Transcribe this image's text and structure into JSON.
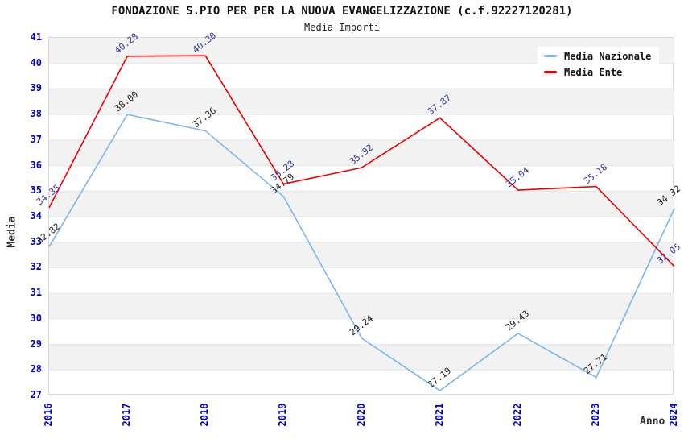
{
  "header": {
    "title": "FONDAZIONE S.PIO PER PER LA NUOVA EVANGELIZZAZIONE (c.f.92227120281)",
    "subtitle": "Media Importi"
  },
  "chart_data": {
    "type": "line",
    "x": [
      2016,
      2017,
      2018,
      2019,
      2020,
      2021,
      2022,
      2023,
      2024
    ],
    "xlabel": "Anno",
    "ylabel": "Media",
    "ylim": [
      27,
      41
    ],
    "ytick_step": 1,
    "grid": true,
    "banded_background": true,
    "legend_position": "top-right",
    "series": [
      {
        "name": "Media Nazionale",
        "color": "#7cb5ec",
        "label_color": "#1a1a1a",
        "values": [
          32.82,
          38.0,
          37.36,
          34.79,
          29.24,
          27.19,
          29.43,
          27.71,
          34.32
        ]
      },
      {
        "name": "Media Ente",
        "color": "#ee0000",
        "label_color": "#333399",
        "values": [
          34.35,
          40.28,
          40.3,
          35.28,
          35.92,
          37.87,
          35.04,
          35.18,
          32.05
        ]
      }
    ]
  },
  "colors": {
    "axis_tick": "#0000cc",
    "band": "#f2f2f2",
    "grid": "#e4e4e4",
    "plot_border": "#d9d9d9"
  }
}
